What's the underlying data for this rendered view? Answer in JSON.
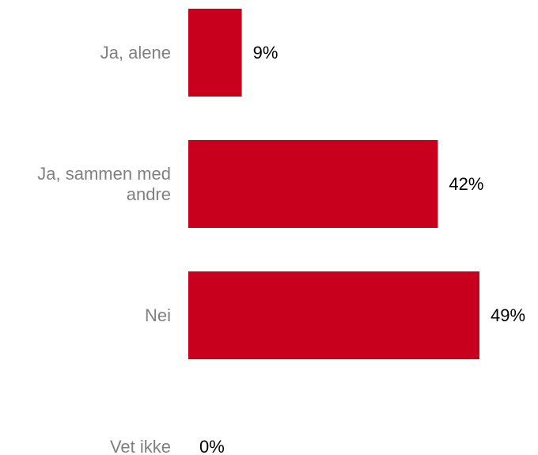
{
  "chart_data": {
    "type": "bar",
    "orientation": "horizontal",
    "categories": [
      "Ja, alene",
      "Ja, sammen med andre",
      "Nei",
      "Vet ikke"
    ],
    "category_lines": [
      [
        "Ja, alene"
      ],
      [
        "Ja, sammen med",
        "andre"
      ],
      [
        "Nei"
      ],
      [
        "Vet ikke"
      ]
    ],
    "values": [
      9,
      42,
      49,
      0
    ],
    "value_labels": [
      "9%",
      "42%",
      "49%",
      "0%"
    ],
    "unit": "%",
    "xlim": [
      0,
      49
    ],
    "bar_color": "#C8001E",
    "category_label_color": "#808080",
    "value_label_color": "#000000",
    "grid": false,
    "legend": "none",
    "title": "",
    "xlabel": "",
    "ylabel": ""
  }
}
